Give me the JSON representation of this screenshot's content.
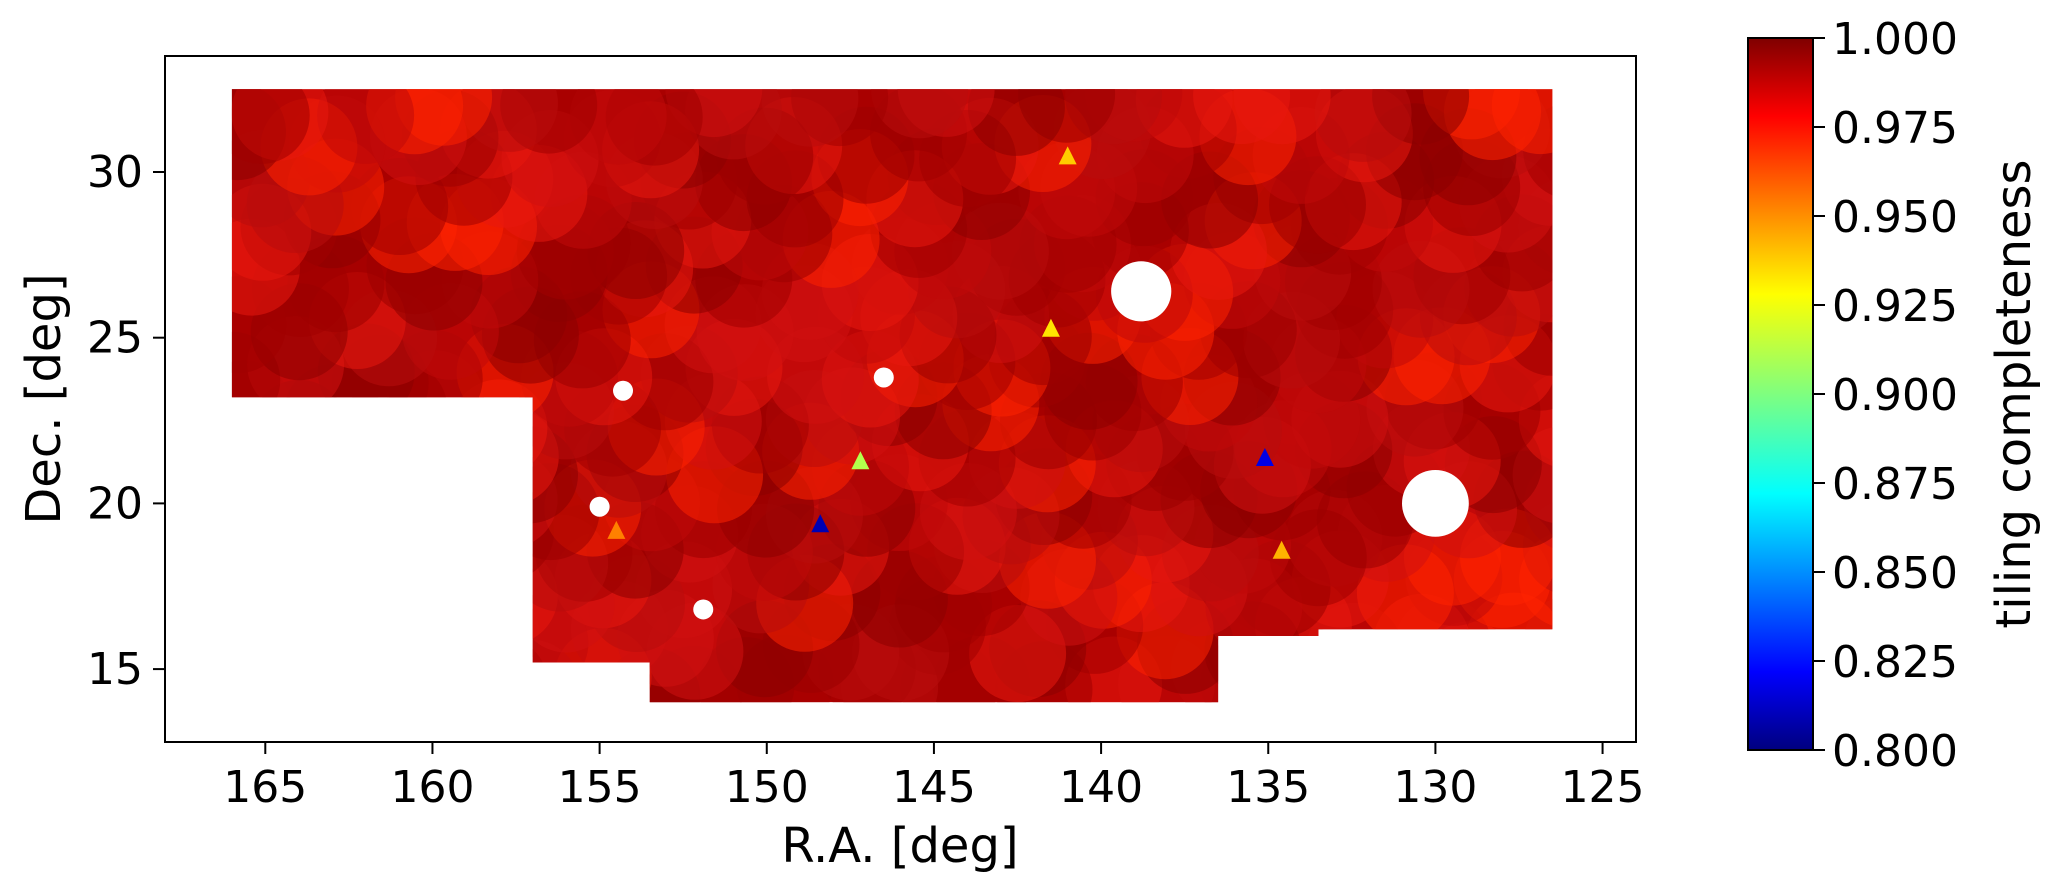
{
  "chart_data": {
    "type": "heatmap",
    "xlabel": "R.A. [deg]",
    "ylabel": "Dec. [deg]",
    "xlim": [
      168,
      124
    ],
    "ylim": [
      12.8,
      33.5
    ],
    "x_inverted": true,
    "x_ticks": [
      165,
      160,
      155,
      150,
      145,
      140,
      135,
      130,
      125
    ],
    "y_ticks": [
      15,
      20,
      25,
      30
    ],
    "colorbar": {
      "label": "tiling completeness",
      "range": [
        0.8,
        1.0
      ],
      "ticks": [
        "0.800",
        "0.825",
        "0.850",
        "0.875",
        "0.900",
        "0.925",
        "0.950",
        "0.975",
        "1.000"
      ],
      "colormap": "jet"
    },
    "regions": [
      {
        "ra_min": 126.5,
        "ra_max": 166,
        "dec_min": 14,
        "dec_max": 32.5,
        "completeness": 0.99
      }
    ],
    "holes": [
      {
        "ra": 138.8,
        "dec": 26.4,
        "radius": 0.9
      },
      {
        "ra": 130.0,
        "dec": 20.0,
        "radius": 1.0
      },
      {
        "ra": 154.3,
        "dec": 23.4
      },
      {
        "ra": 146.5,
        "dec": 23.8
      },
      {
        "ra": 155.0,
        "dec": 19.9
      },
      {
        "ra": 151.9,
        "dec": 16.8
      }
    ],
    "low_completeness_spots": [
      {
        "ra": 147.2,
        "dec": 21.3,
        "completeness": 0.91
      },
      {
        "ra": 141.5,
        "dec": 25.3,
        "completeness": 0.93
      },
      {
        "ra": 141.0,
        "dec": 30.5,
        "completeness": 0.935
      },
      {
        "ra": 148.4,
        "dec": 19.4,
        "completeness": 0.81
      },
      {
        "ra": 135.1,
        "dec": 21.4,
        "completeness": 0.82
      },
      {
        "ra": 134.6,
        "dec": 18.6,
        "completeness": 0.94
      },
      {
        "ra": 154.5,
        "dec": 19.2,
        "completeness": 0.95
      }
    ]
  }
}
